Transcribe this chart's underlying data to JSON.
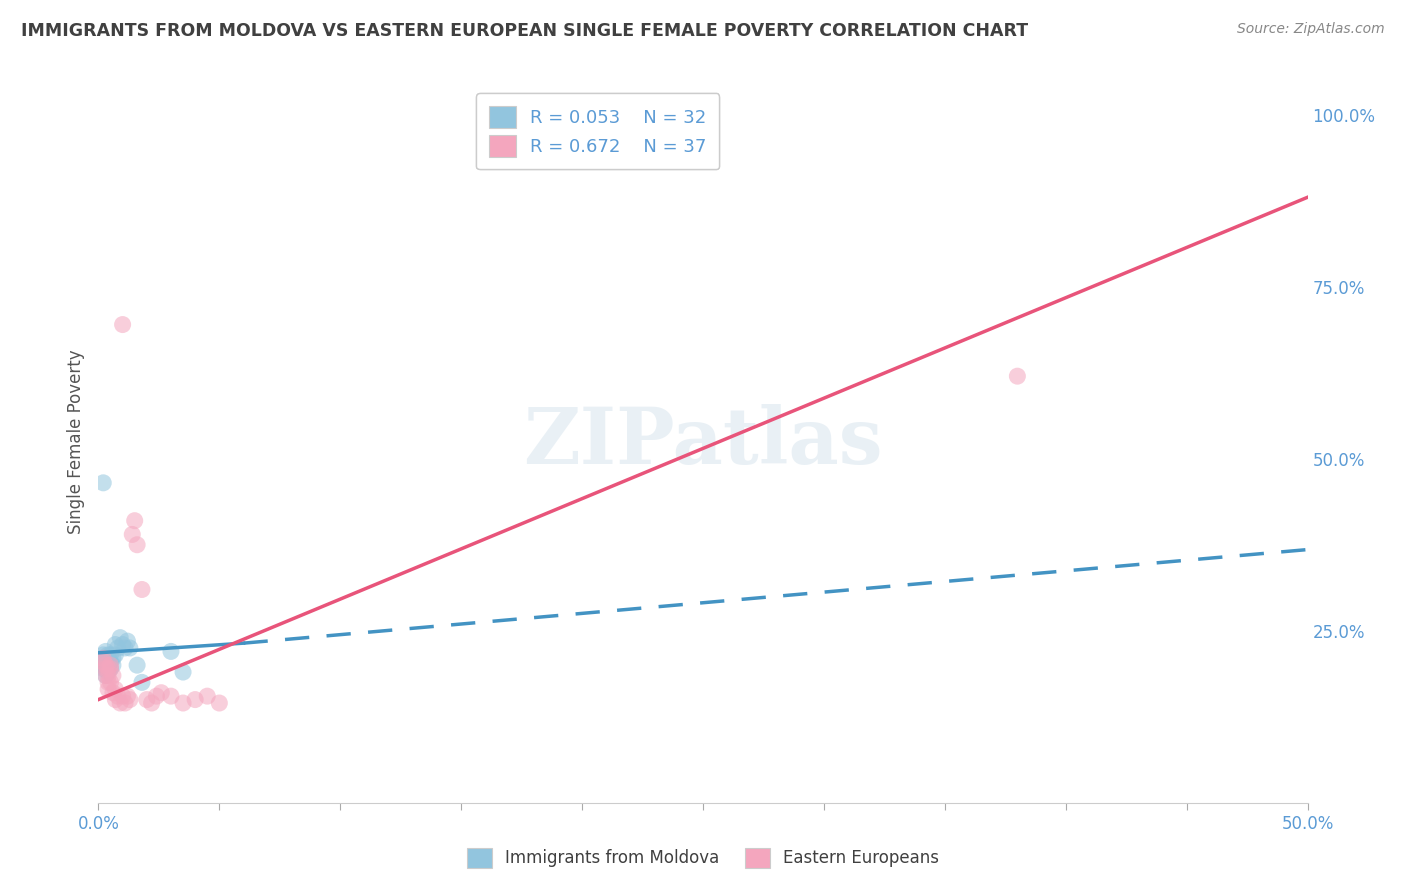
{
  "title": "IMMIGRANTS FROM MOLDOVA VS EASTERN EUROPEAN SINGLE FEMALE POVERTY CORRELATION CHART",
  "source": "Source: ZipAtlas.com",
  "ylabel": "Single Female Poverty",
  "xlim": [
    0.0,
    0.5
  ],
  "ylim": [
    0.0,
    1.05
  ],
  "xticks": [
    0.0,
    0.05,
    0.1,
    0.15,
    0.2,
    0.25,
    0.3,
    0.35,
    0.4,
    0.45,
    0.5
  ],
  "xticklabels_show": [
    "0.0%",
    "",
    "",
    "",
    "",
    "",
    "",
    "",
    "",
    "",
    "50.0%"
  ],
  "yticks_right": [
    0.25,
    0.5,
    0.75,
    1.0
  ],
  "yticklabels_right": [
    "25.0%",
    "50.0%",
    "75.0%",
    "100.0%"
  ],
  "watermark": "ZIPatlas",
  "legend_r1": "0.053",
  "legend_n1": "32",
  "legend_r2": "0.672",
  "legend_n2": "37",
  "blue_color": "#92c5de",
  "pink_color": "#f4a6be",
  "blue_line_color": "#4393c3",
  "pink_line_color": "#e8547a",
  "axis_tick_color": "#5b9bd5",
  "title_color": "#404040",
  "blue_scatter": [
    [
      0.0015,
      0.21
    ],
    [
      0.0018,
      0.205
    ],
    [
      0.002,
      0.215
    ],
    [
      0.002,
      0.195
    ],
    [
      0.002,
      0.2
    ],
    [
      0.003,
      0.21
    ],
    [
      0.003,
      0.22
    ],
    [
      0.003,
      0.195
    ],
    [
      0.003,
      0.185
    ],
    [
      0.004,
      0.21
    ],
    [
      0.004,
      0.2
    ],
    [
      0.004,
      0.215
    ],
    [
      0.004,
      0.19
    ],
    [
      0.004,
      0.205
    ],
    [
      0.005,
      0.215
    ],
    [
      0.005,
      0.195
    ],
    [
      0.005,
      0.205
    ],
    [
      0.006,
      0.2
    ],
    [
      0.006,
      0.21
    ],
    [
      0.007,
      0.23
    ],
    [
      0.007,
      0.215
    ],
    [
      0.008,
      0.225
    ],
    [
      0.009,
      0.24
    ],
    [
      0.01,
      0.23
    ],
    [
      0.011,
      0.225
    ],
    [
      0.012,
      0.235
    ],
    [
      0.013,
      0.225
    ],
    [
      0.016,
      0.2
    ],
    [
      0.018,
      0.175
    ],
    [
      0.03,
      0.22
    ],
    [
      0.002,
      0.465
    ],
    [
      0.035,
      0.19
    ]
  ],
  "pink_scatter": [
    [
      0.002,
      0.21
    ],
    [
      0.002,
      0.205
    ],
    [
      0.003,
      0.195
    ],
    [
      0.003,
      0.2
    ],
    [
      0.003,
      0.185
    ],
    [
      0.004,
      0.195
    ],
    [
      0.004,
      0.175
    ],
    [
      0.004,
      0.165
    ],
    [
      0.004,
      0.185
    ],
    [
      0.005,
      0.175
    ],
    [
      0.005,
      0.195
    ],
    [
      0.005,
      0.2
    ],
    [
      0.006,
      0.185
    ],
    [
      0.006,
      0.16
    ],
    [
      0.007,
      0.165
    ],
    [
      0.007,
      0.15
    ],
    [
      0.008,
      0.155
    ],
    [
      0.009,
      0.145
    ],
    [
      0.01,
      0.155
    ],
    [
      0.011,
      0.145
    ],
    [
      0.012,
      0.155
    ],
    [
      0.013,
      0.15
    ],
    [
      0.014,
      0.39
    ],
    [
      0.015,
      0.41
    ],
    [
      0.016,
      0.375
    ],
    [
      0.018,
      0.31
    ],
    [
      0.02,
      0.15
    ],
    [
      0.022,
      0.145
    ],
    [
      0.024,
      0.155
    ],
    [
      0.026,
      0.16
    ],
    [
      0.03,
      0.155
    ],
    [
      0.035,
      0.145
    ],
    [
      0.04,
      0.15
    ],
    [
      0.045,
      0.155
    ],
    [
      0.05,
      0.145
    ],
    [
      0.38,
      0.62
    ],
    [
      0.01,
      0.695
    ]
  ],
  "blue_trendline_solid": [
    0.0,
    0.06,
    0.218,
    0.232
  ],
  "blue_trendline_dashed": [
    0.06,
    0.5,
    0.232,
    0.368
  ],
  "pink_trendline": [
    0.0,
    0.5,
    0.15,
    0.88
  ],
  "grid_color": "#d8d8d8"
}
